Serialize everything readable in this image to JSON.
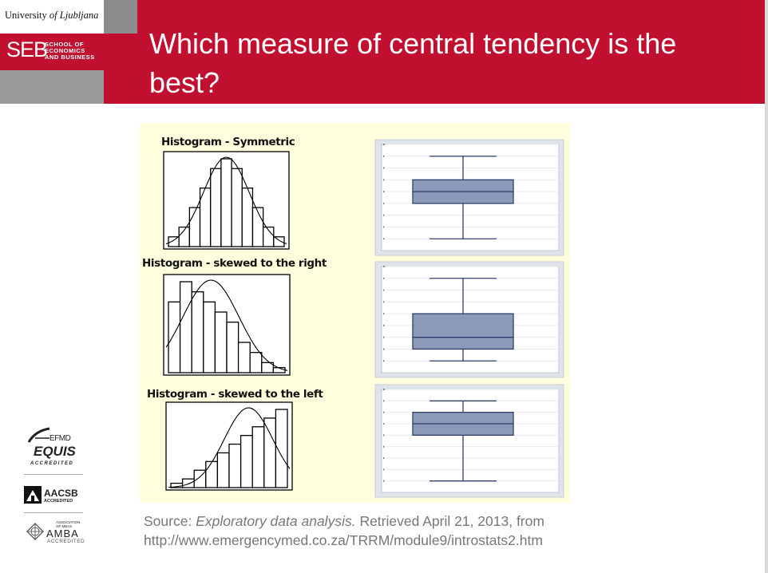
{
  "header": {
    "university": {
      "prefix": "University",
      "of": "of",
      "name": "Ljubljana"
    },
    "school": {
      "mark": "SEB",
      "line1": "SCHOOL OF",
      "line2": "ECONOMICS",
      "line3": "AND BUSINESS"
    },
    "title": "Which measure of central tendency is the best?"
  },
  "figure": {
    "histograms": [
      {
        "title": "Histogram - Symmetric",
        "bars": [
          1,
          2,
          4,
          6,
          8,
          9,
          8,
          6,
          4,
          2,
          1
        ]
      },
      {
        "title": "Histogram - skewed to the right",
        "bars": [
          7,
          9,
          8,
          7,
          6,
          5,
          3,
          2,
          1,
          0.5
        ]
      },
      {
        "title": "Histogram - skewed to the left",
        "bars": [
          0.5,
          1,
          2,
          3,
          4,
          5,
          6,
          7,
          8,
          9
        ]
      }
    ],
    "boxplots": [
      {
        "min": 1,
        "q1": 4,
        "median": 5,
        "q3": 6,
        "max": 8,
        "ymax": 9
      },
      {
        "min": 1,
        "q1": 2,
        "median": 3,
        "q3": 5,
        "max": 8,
        "ymax": 9
      },
      {
        "min": 1,
        "q1": 5,
        "median": 6,
        "q3": 7,
        "max": 8,
        "ymax": 9
      }
    ],
    "colors": {
      "panel": "#ffffdd",
      "plot_bg": "#ffffff",
      "box_fill": "#8c99b8",
      "box_stroke": "#2d3f6a",
      "plot_border": "#c7cdd9"
    }
  },
  "source": {
    "prefix": "Source: ",
    "title": "Exploratory data analysis.",
    "retrieved": " Retrieved April 21, 2013, from",
    "url": "http://www.emergencymed.co.za/TRRM/module9/introstats2.htm"
  },
  "accreditations": {
    "efmd": "EFMD",
    "equis": "EQUIS",
    "equis_sub": "ACCREDITED",
    "aacsb": "AACSB",
    "aacsb_sub": "ACCREDITED",
    "amba_assoc": "ASSOCIATION OF MBAS",
    "amba": "AMBA",
    "amba_sub": "ACCREDITED"
  }
}
